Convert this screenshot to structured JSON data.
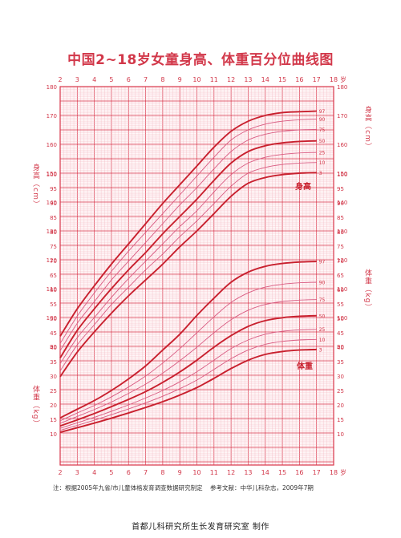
{
  "title": "中国2~18岁女童身高、体重百分位曲线图",
  "axis_unit_age": "岁",
  "height_axis_label": "身高（cm）",
  "weight_axis_label": "体重（kg）",
  "height_curve_label": "身高",
  "weight_curve_label": "体重",
  "footnote_source": "注：根据2005年九省/市儿童体格发育调查数据研究制定",
  "footnote_reference": "参考文献：中华儿科杂志，2009年7期",
  "publisher": "首都儿科研究所生长发育研究室  制作",
  "colors": {
    "major": "#d9364a",
    "minor": "#f3b8c2",
    "line": "#c8202e",
    "line_light": "#d95b82",
    "text": "#d2384a"
  },
  "chart_data": {
    "type": "line",
    "title": "中国2~18岁女童身高、体重百分位曲线图",
    "x_ticks": [
      2,
      3,
      4,
      5,
      6,
      7,
      8,
      9,
      10,
      11,
      12,
      13,
      14,
      15,
      16,
      17,
      18
    ],
    "xlim": [
      2,
      18
    ],
    "height_ticks": [
      90,
      100,
      110,
      120,
      130,
      140,
      150,
      160,
      170,
      180
    ],
    "height_ylim": [
      80,
      180
    ],
    "weight_ticks": [
      10,
      15,
      20,
      25,
      30,
      35,
      40,
      45,
      50,
      55,
      60,
      65,
      70,
      75,
      80,
      85,
      90,
      95,
      100
    ],
    "grid": true,
    "percentiles": [
      "3",
      "10",
      "25",
      "50",
      "75",
      "90",
      "97"
    ],
    "height_series": [
      {
        "name": "97",
        "x": [
          2,
          3,
          4,
          5,
          6,
          7,
          8,
          9,
          10,
          11,
          12,
          13,
          14,
          15,
          16,
          17
        ],
        "values": [
          93.5,
          103,
          111,
          118.5,
          125.5,
          132.5,
          139.5,
          146,
          152.5,
          159,
          164.5,
          168,
          170,
          171,
          171.3,
          171.5
        ]
      },
      {
        "name": "90",
        "x": [
          2,
          3,
          4,
          5,
          6,
          7,
          8,
          9,
          10,
          11,
          12,
          13,
          14,
          15,
          16,
          17
        ],
        "values": [
          91,
          100.5,
          108.5,
          116,
          123,
          129.5,
          136,
          142.5,
          149,
          155.5,
          161.5,
          165,
          167,
          168,
          168.5,
          168.7
        ]
      },
      {
        "name": "75",
        "x": [
          2,
          3,
          4,
          5,
          6,
          7,
          8,
          9,
          10,
          11,
          12,
          13,
          14,
          15,
          16,
          17
        ],
        "values": [
          88.5,
          98,
          105.5,
          113,
          119.5,
          126,
          132.5,
          139,
          145,
          151.5,
          157.5,
          161.5,
          163.5,
          164.5,
          165,
          165.2
        ]
      },
      {
        "name": "50",
        "x": [
          2,
          3,
          4,
          5,
          6,
          7,
          8,
          9,
          10,
          11,
          12,
          13,
          14,
          15,
          16,
          17
        ],
        "values": [
          86,
          95.5,
          103,
          110,
          116.5,
          122.5,
          129,
          135,
          141,
          147.5,
          153.5,
          157.5,
          159.5,
          160.5,
          161,
          161.2
        ]
      },
      {
        "name": "25",
        "x": [
          2,
          3,
          4,
          5,
          6,
          7,
          8,
          9,
          10,
          11,
          12,
          13,
          14,
          15,
          16,
          17
        ],
        "values": [
          84,
          93,
          100,
          107,
          113.5,
          119.5,
          125.5,
          131.5,
          137,
          143.5,
          149.5,
          153.5,
          155.5,
          156.5,
          157,
          157.2
        ]
      },
      {
        "name": "10",
        "x": [
          2,
          3,
          4,
          5,
          6,
          7,
          8,
          9,
          10,
          11,
          12,
          13,
          14,
          15,
          16,
          17
        ],
        "values": [
          81.5,
          90.5,
          97.5,
          104.5,
          110.5,
          116.5,
          122,
          128,
          133.5,
          139.5,
          145.5,
          150,
          152,
          153,
          153.5,
          153.7
        ]
      },
      {
        "name": "3",
        "x": [
          2,
          3,
          4,
          5,
          6,
          7,
          8,
          9,
          10,
          11,
          12,
          13,
          14,
          15,
          16,
          17
        ],
        "values": [
          79.5,
          88,
          95,
          101.5,
          107.5,
          113,
          118.5,
          124.5,
          130,
          136,
          142,
          146.5,
          148.5,
          149.5,
          150,
          150.2
        ]
      }
    ],
    "weight_series": [
      {
        "name": "97",
        "x": [
          2,
          3,
          4,
          5,
          6,
          7,
          8,
          9,
          10,
          11,
          12,
          13,
          14,
          15,
          16,
          17
        ],
        "values": [
          15.5,
          18.5,
          21.5,
          25,
          29,
          33.5,
          39,
          44.5,
          51,
          57,
          62.5,
          66,
          68,
          69,
          69.5,
          69.7
        ]
      },
      {
        "name": "90",
        "x": [
          2,
          3,
          4,
          5,
          6,
          7,
          8,
          9,
          10,
          11,
          12,
          13,
          14,
          15,
          16,
          17
        ],
        "values": [
          14.5,
          17.2,
          19.8,
          22.8,
          26.2,
          30,
          34.5,
          39.5,
          45,
          50.5,
          55.5,
          58.8,
          60.8,
          61.8,
          62.3,
          62.5
        ]
      },
      {
        "name": "75",
        "x": [
          2,
          3,
          4,
          5,
          6,
          7,
          8,
          9,
          10,
          11,
          12,
          13,
          14,
          15,
          16,
          17
        ],
        "values": [
          13.6,
          16,
          18.4,
          21,
          24,
          27.2,
          31,
          35.3,
          40,
          45,
          49.5,
          52.8,
          54.8,
          55.8,
          56.3,
          56.5
        ]
      },
      {
        "name": "50",
        "x": [
          2,
          3,
          4,
          5,
          6,
          7,
          8,
          9,
          10,
          11,
          12,
          13,
          14,
          15,
          16,
          17
        ],
        "values": [
          12.7,
          14.8,
          17,
          19.4,
          21.9,
          24.6,
          27.8,
          31.4,
          35.5,
          40,
          44,
          47.2,
          49.2,
          50.2,
          50.7,
          50.9
        ]
      },
      {
        "name": "25",
        "x": [
          2,
          3,
          4,
          5,
          6,
          7,
          8,
          9,
          10,
          11,
          12,
          13,
          14,
          15,
          16,
          17
        ],
        "values": [
          11.9,
          13.8,
          15.7,
          17.8,
          20,
          22.4,
          25,
          28,
          31.5,
          35.5,
          39.5,
          42.5,
          44.5,
          45.5,
          46,
          46.2
        ]
      },
      {
        "name": "10",
        "x": [
          2,
          3,
          4,
          5,
          6,
          7,
          8,
          9,
          10,
          11,
          12,
          13,
          14,
          15,
          16,
          17
        ],
        "values": [
          11.2,
          12.9,
          14.7,
          16.6,
          18.6,
          20.7,
          23,
          25.6,
          28.6,
          32.3,
          36,
          39,
          41,
          42,
          42.5,
          42.7
        ]
      },
      {
        "name": "3",
        "x": [
          2,
          3,
          4,
          5,
          6,
          7,
          8,
          9,
          10,
          11,
          12,
          13,
          14,
          15,
          16,
          17
        ],
        "values": [
          10.5,
          12.1,
          13.7,
          15.4,
          17.2,
          19.1,
          21.1,
          23.4,
          26,
          29.2,
          32.6,
          35.5,
          37.5,
          38.5,
          39,
          39.2
        ]
      }
    ]
  }
}
